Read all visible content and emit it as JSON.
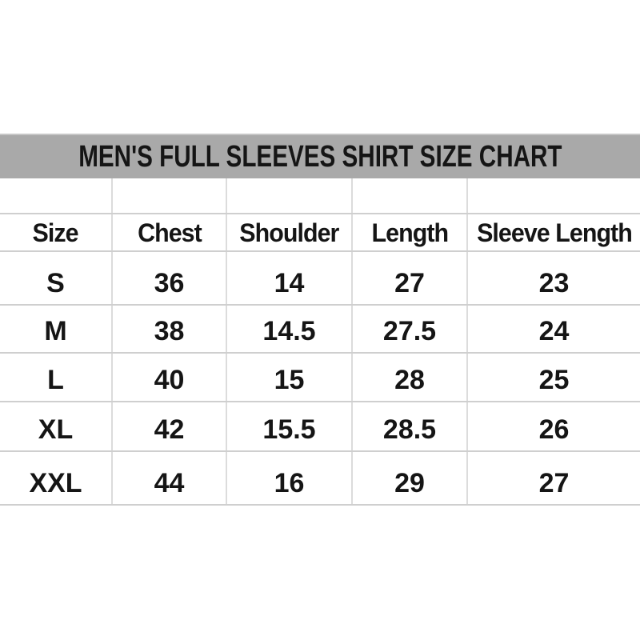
{
  "chart_data": {
    "type": "table",
    "title": "MEN'S FULL SLEEVES SHIRT SIZE CHART",
    "columns": [
      "Size",
      "Chest",
      "Shoulder",
      "Length",
      "Sleeve Length"
    ],
    "rows": [
      [
        "S",
        "36",
        "14",
        "27",
        "23"
      ],
      [
        "M",
        "38",
        "14.5",
        "27.5",
        "24"
      ],
      [
        "L",
        "40",
        "15",
        "28",
        "25"
      ],
      [
        "XL",
        "42",
        "15.5",
        "28.5",
        "26"
      ],
      [
        "XXL",
        "44",
        "16",
        "29",
        "27"
      ]
    ],
    "layout": {
      "legend": "none",
      "grid": "on",
      "header_position": "top"
    }
  },
  "colors": {
    "page_background": "#ffffff",
    "band_background": "#a9a9a9",
    "band_highlight_top": "#c6c6c6",
    "grid_vertical": "#dcdcdc",
    "grid_horizontal": "#cfcfcf",
    "text": "#151515"
  }
}
